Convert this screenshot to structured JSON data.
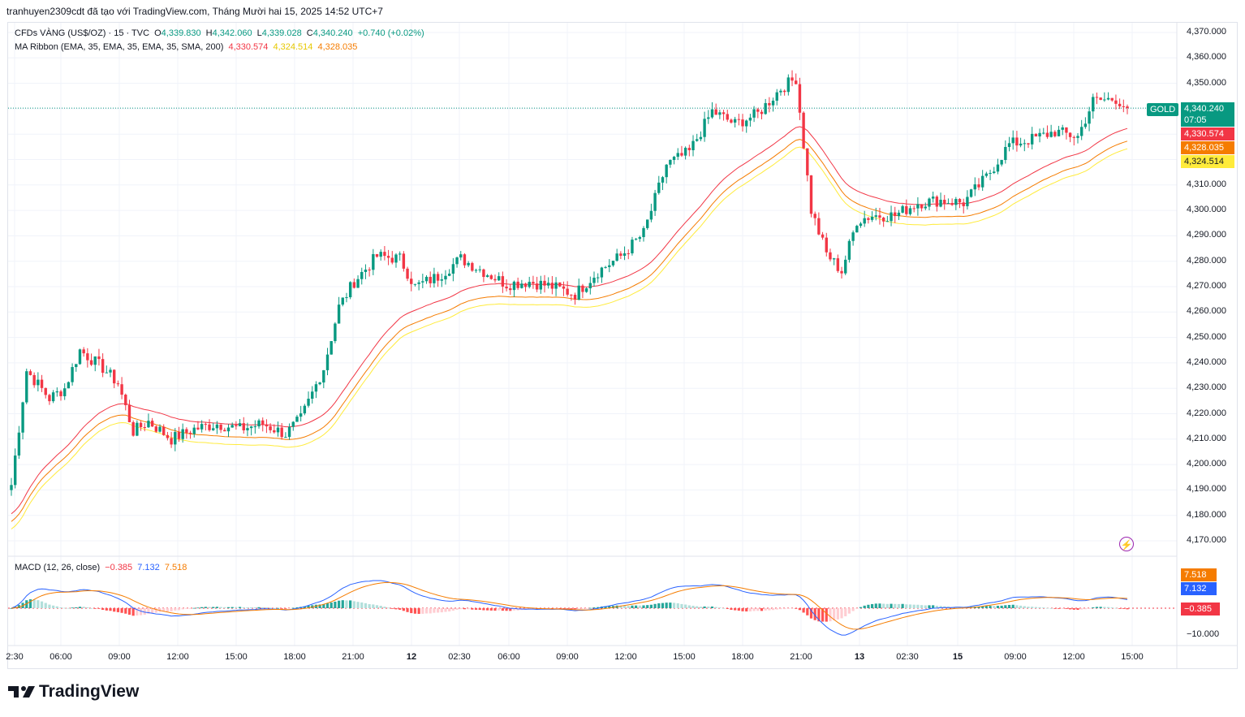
{
  "header": {
    "text": "tranhuyen2309cdt đã tạo với TradingView.com, Tháng Mười hai 15, 2025 14:52 UTC+7"
  },
  "legend": {
    "symbol": "CFDs VÀNG (US$/OZ) · 15 · TVC",
    "o_label": "O",
    "o": "4,339.830",
    "h_label": "H",
    "h": "4,342.060",
    "l_label": "L",
    "l": "4,339.028",
    "c_label": "C",
    "c": "4,340.240",
    "change": "+0.740 (+0.02%)",
    "ribbon_label": "MA Ribbon (EMA, 35, EMA, 35, EMA, 35, SMA, 200)",
    "ribbon_v1": "4,330.574",
    "ribbon_v2": "4,324.514",
    "ribbon_v3": "4,328.035",
    "macd_label": "MACD (12, 26, close)",
    "macd_hist": "−0.385",
    "macd_line": "7.132",
    "macd_signal": "7.518"
  },
  "price_badges": {
    "symbol": "GOLD",
    "last": "4,340.240",
    "countdown": "07:05",
    "ma1": "4,330.574",
    "ma3": "4,328.035",
    "ma2": "4,324.514",
    "macd_signal": "7.518",
    "macd_line": "7.132",
    "macd_hist": "−0.385"
  },
  "colors": {
    "up": "#089981",
    "down": "#f23645",
    "ma1": "#f23645",
    "ma2": "#f57c00",
    "ma3": "#ffeb3b",
    "macd": "#2962ff",
    "signal": "#f57c00"
  },
  "logo": {
    "text": "TradingView"
  },
  "chart_data": {
    "type": "candlestick",
    "title": "CFDs VÀNG (US$/OZ) · 15 · TVC",
    "ylim": [
      4165,
      4375
    ],
    "yticks": [
      "4,370.000",
      "4,360.000",
      "4,350.000",
      "4,340.000",
      "4,330.000",
      "4,320.000",
      "4,310.000",
      "4,300.000",
      "4,290.000",
      "4,280.000",
      "4,270.000",
      "4,260.000",
      "4,250.000",
      "4,240.000",
      "4,230.000",
      "4,220.000",
      "4,210.000",
      "4,200.000",
      "4,190.000",
      "4,180.000",
      "4,170.000"
    ],
    "xticks": [
      "2:30",
      "06:00",
      "09:00",
      "12:00",
      "15:00",
      "18:00",
      "21:00",
      "12",
      "02:30",
      "06:00",
      "09:00",
      "12:00",
      "15:00",
      "18:00",
      "21:00",
      "13",
      "02:30",
      "15",
      "09:00",
      "12:00",
      "15:00"
    ],
    "macd_ytick": "−10.000",
    "last_close": 4340.24,
    "waypoints": [
      [
        0,
        4192
      ],
      [
        4,
        4237
      ],
      [
        10,
        4226
      ],
      [
        14,
        4230
      ],
      [
        18,
        4245
      ],
      [
        24,
        4238
      ],
      [
        28,
        4232
      ],
      [
        32,
        4213
      ],
      [
        36,
        4217
      ],
      [
        42,
        4210
      ],
      [
        48,
        4214
      ],
      [
        54,
        4216
      ],
      [
        60,
        4214
      ],
      [
        66,
        4216
      ],
      [
        72,
        4212
      ],
      [
        76,
        4218
      ],
      [
        82,
        4238
      ],
      [
        86,
        4262
      ],
      [
        90,
        4272
      ],
      [
        96,
        4282
      ],
      [
        102,
        4281
      ],
      [
        106,
        4270
      ],
      [
        112,
        4274
      ],
      [
        118,
        4281
      ],
      [
        124,
        4276
      ],
      [
        130,
        4271
      ],
      [
        136,
        4272
      ],
      [
        142,
        4270
      ],
      [
        148,
        4267
      ],
      [
        154,
        4276
      ],
      [
        160,
        4282
      ],
      [
        166,
        4291
      ],
      [
        172,
        4318
      ],
      [
        178,
        4323
      ],
      [
        184,
        4339
      ],
      [
        190,
        4334
      ],
      [
        196,
        4338
      ],
      [
        202,
        4348
      ],
      [
        206,
        4352
      ],
      [
        210,
        4300
      ],
      [
        214,
        4283
      ],
      [
        218,
        4276
      ],
      [
        222,
        4296
      ],
      [
        226,
        4298
      ],
      [
        232,
        4298
      ],
      [
        238,
        4303
      ],
      [
        244,
        4304
      ],
      [
        250,
        4303
      ],
      [
        256,
        4313
      ],
      [
        262,
        4326
      ],
      [
        268,
        4328
      ],
      [
        274,
        4331
      ],
      [
        280,
        4329
      ],
      [
        284,
        4343
      ],
      [
        290,
        4344
      ],
      [
        293,
        4340.24
      ]
    ],
    "ribbon": {
      "ma1_last": 4330.574,
      "ma2_last": 4324.514,
      "ma3_last": 4328.035
    },
    "macd": {
      "macd_last": 7.132,
      "signal_last": 7.518,
      "hist_last": -0.385
    }
  }
}
